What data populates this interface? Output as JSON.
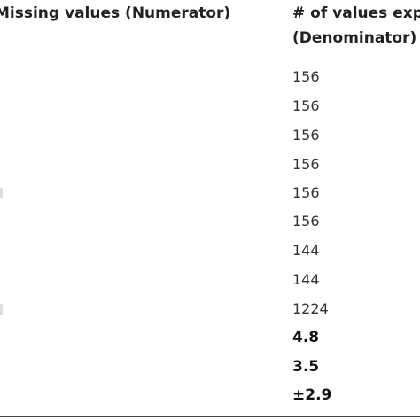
{
  "table": {
    "headers": {
      "missing_values": "Missing values (Numerator)",
      "expected_line1": "# of values expe",
      "expected_line2": "(Denominator)"
    },
    "denominator_values": [
      "156",
      "156",
      "156",
      "156",
      "156",
      "156",
      "144",
      "144",
      "1224"
    ],
    "summary_values": [
      "4.8",
      "3.5",
      "±2.9"
    ]
  }
}
